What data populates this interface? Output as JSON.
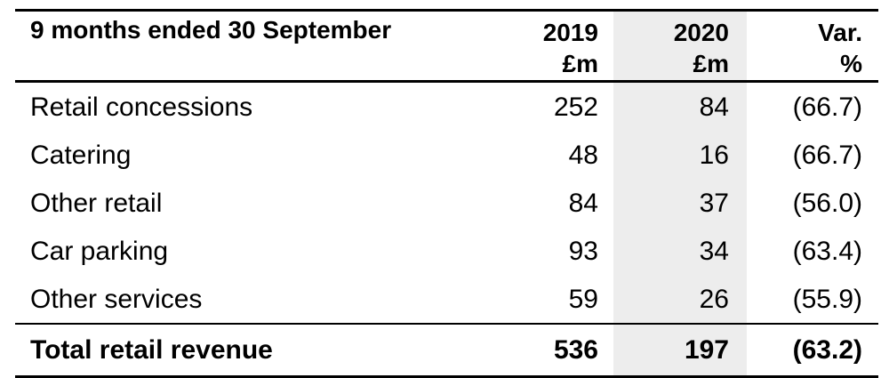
{
  "colors": {
    "page_background": "#ffffff",
    "shaded_column_background": "#ededed",
    "rule_color": "#000000",
    "text_color": "#000000"
  },
  "table": {
    "period_header": "9 months ended 30 September",
    "columns": [
      {
        "year": "2019",
        "unit": "£m"
      },
      {
        "year": "2020",
        "unit": "£m"
      },
      {
        "year": "Var.",
        "unit": "%"
      }
    ],
    "rows": [
      {
        "label": "Retail concessions",
        "y2019": "252",
        "y2020": "84",
        "var": "(66.7)"
      },
      {
        "label": "Catering",
        "y2019": "48",
        "y2020": "16",
        "var": "(66.7)"
      },
      {
        "label": "Other retail",
        "y2019": "84",
        "y2020": "37",
        "var": "(56.0)"
      },
      {
        "label": "Car parking",
        "y2019": "93",
        "y2020": "34",
        "var": "(63.4)"
      },
      {
        "label": "Other services",
        "y2019": "59",
        "y2020": "26",
        "var": "(55.9)"
      }
    ],
    "total": {
      "label": "Total retail revenue",
      "y2019": "536",
      "y2020": "197",
      "var": "(63.2)"
    }
  },
  "chart_data": {
    "type": "table",
    "title": "9 months ended 30 September",
    "columns": [
      "2019 £m",
      "2020 £m",
      "Var. %"
    ],
    "rows": [
      {
        "label": "Retail concessions",
        "values": [
          252,
          84,
          -66.7
        ]
      },
      {
        "label": "Catering",
        "values": [
          48,
          16,
          -66.7
        ]
      },
      {
        "label": "Other retail",
        "values": [
          84,
          37,
          -56.0
        ]
      },
      {
        "label": "Car parking",
        "values": [
          93,
          34,
          -63.4
        ]
      },
      {
        "label": "Other services",
        "values": [
          59,
          26,
          -55.9
        ]
      },
      {
        "label": "Total retail revenue",
        "values": [
          536,
          197,
          -63.2
        ]
      }
    ],
    "notes": "2020 column shaded; negative variances shown in parentheses"
  }
}
